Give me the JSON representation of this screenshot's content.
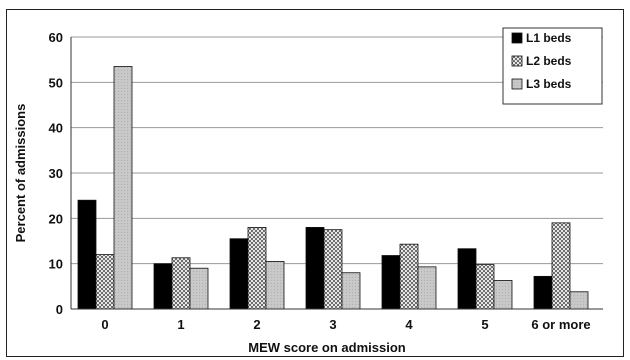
{
  "chart_data": {
    "type": "bar",
    "xlabel": "MEW score on admission",
    "ylabel": "Percent of admissions",
    "ylim": [
      0,
      60
    ],
    "yticks": [
      0,
      10,
      20,
      30,
      40,
      50,
      60
    ],
    "grid": true,
    "legend_position": "top-right",
    "categories": [
      "0",
      "1",
      "2",
      "3",
      "4",
      "5",
      "6 or more"
    ],
    "series": [
      {
        "name": "L1 beds",
        "color": "#000000",
        "pattern": "solid",
        "values": [
          24,
          10,
          15.5,
          18,
          11.8,
          13.3,
          7.2
        ]
      },
      {
        "name": "L2 beds",
        "color": "#bdbdbd",
        "pattern": "dotted",
        "values": [
          12,
          11.3,
          18,
          17.5,
          14.3,
          9.8,
          19
        ]
      },
      {
        "name": "L3 beds",
        "color": "#cfcfcf",
        "pattern": "light",
        "values": [
          53.5,
          9,
          10.5,
          8,
          9.3,
          6.3,
          3.8
        ]
      }
    ]
  }
}
